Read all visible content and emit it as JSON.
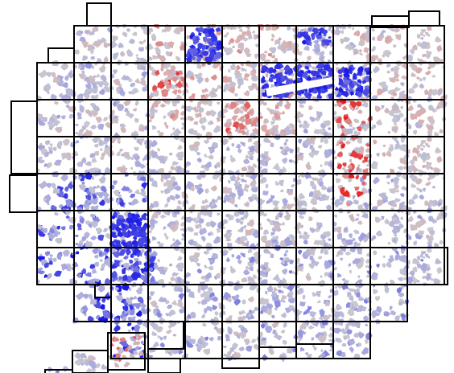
{
  "map": {
    "kind": "choropleth-grid",
    "colors": {
      "background": "#ffffff",
      "grid_stroke": "#000000",
      "strong_blue": "#1a1ae6",
      "light_blue": "#a8a8de",
      "neutral_gray": "#c8c8d2",
      "light_red": "#dba8a8",
      "strong_red": "#e61a1a"
    }
  }
}
